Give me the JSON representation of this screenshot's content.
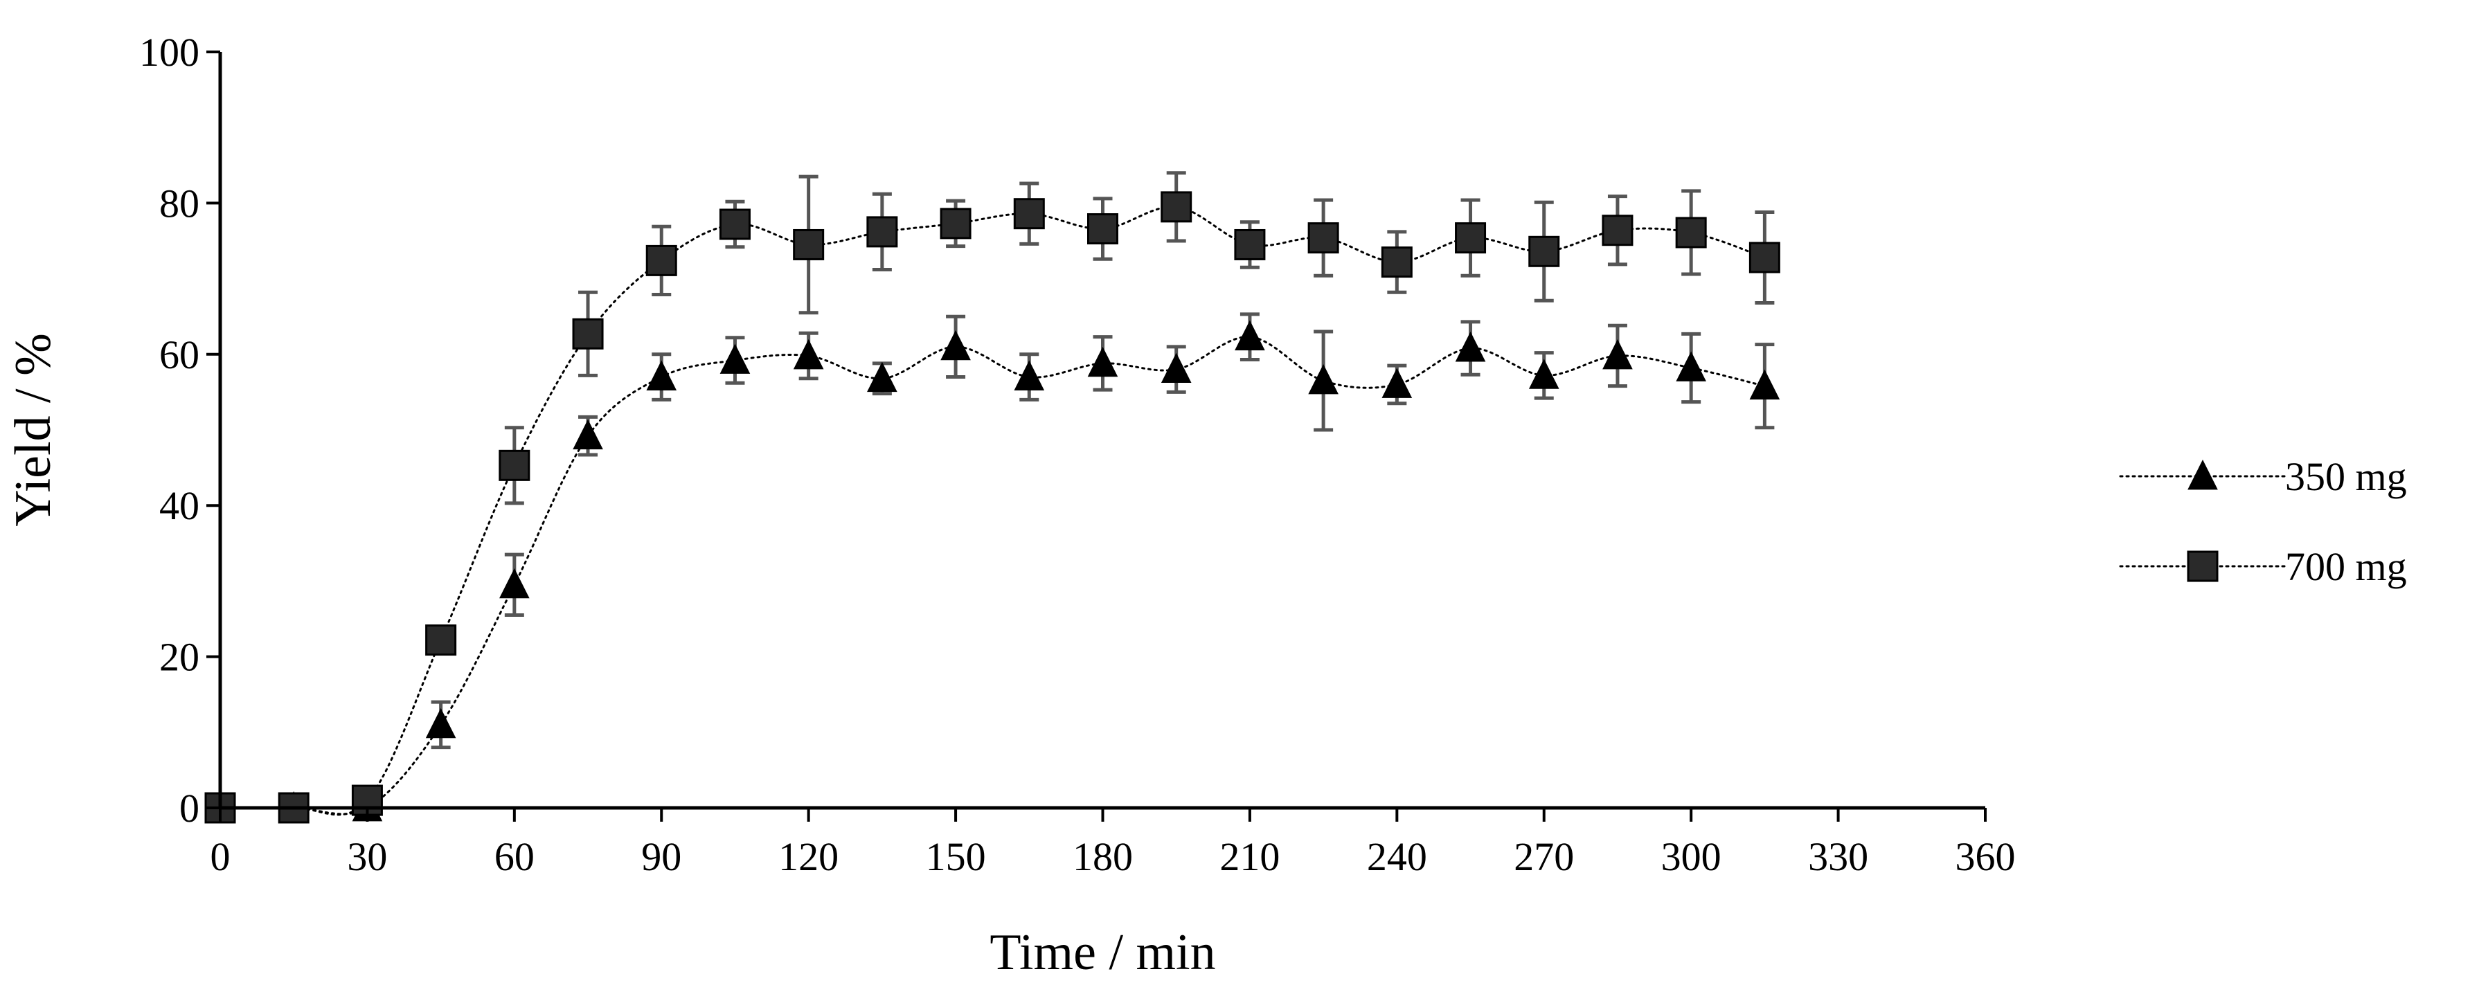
{
  "chart_data": {
    "type": "line",
    "title": "",
    "xlabel": "Time / min",
    "ylabel": "Yield / %",
    "xlim": [
      0,
      360
    ],
    "ylim": [
      0,
      100
    ],
    "xticks": [
      0,
      30,
      60,
      90,
      120,
      150,
      180,
      210,
      240,
      270,
      300,
      330,
      360
    ],
    "yticks": [
      0,
      20,
      40,
      60,
      80,
      100
    ],
    "grid": false,
    "legend_position": "right",
    "series": [
      {
        "name": "350 mg",
        "marker": "triangle",
        "x": [
          0,
          15,
          30,
          45,
          60,
          75,
          90,
          105,
          120,
          135,
          150,
          165,
          180,
          195,
          210,
          225,
          240,
          255,
          270,
          285,
          300,
          315
        ],
        "y": [
          0,
          0,
          0,
          11,
          29.5,
          49.2,
          57,
          59.2,
          59.8,
          56.8,
          61,
          57,
          58.8,
          58,
          62.3,
          56.5,
          56,
          60.8,
          57.2,
          59.8,
          58.2,
          55.8
        ],
        "err": [
          0,
          0,
          0,
          3,
          4,
          2.5,
          3,
          3,
          3,
          2,
          4,
          3,
          3.5,
          3,
          3,
          6.5,
          2.5,
          3.5,
          3,
          4,
          4.5,
          5.5
        ]
      },
      {
        "name": "700 mg",
        "marker": "square",
        "x": [
          0,
          15,
          30,
          45,
          60,
          75,
          90,
          105,
          120,
          135,
          150,
          165,
          180,
          195,
          210,
          225,
          240,
          255,
          270,
          285,
          300,
          315
        ],
        "y": [
          0,
          0,
          1,
          22.2,
          45.3,
          62.7,
          72.4,
          77.2,
          74.5,
          76.2,
          77.3,
          78.6,
          76.6,
          79.5,
          74.5,
          75.4,
          72.2,
          75.4,
          73.6,
          76.4,
          76.1,
          72.8
        ],
        "err": [
          0,
          0,
          0,
          0,
          5,
          5.5,
          4.5,
          3,
          9,
          5,
          3,
          4,
          4,
          4.5,
          3,
          5,
          4,
          5,
          6.5,
          4.5,
          5.5,
          6
        ]
      }
    ]
  }
}
